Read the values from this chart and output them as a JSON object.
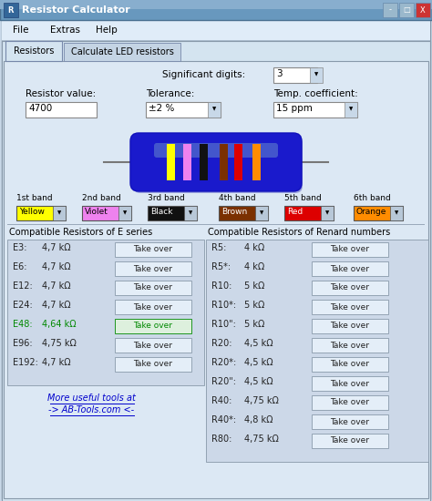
{
  "title": "Resistor Calculator",
  "bg_color": "#c8d8e8",
  "window_bg": "#e8f0f8",
  "title_bar_top": "#7aaac8",
  "title_bar_bot": "#5888a8",
  "menu_items": [
    "File",
    "Extras",
    "Help"
  ],
  "tabs": [
    "Resistors",
    "Calculate LED resistors"
  ],
  "sig_digits_label": "Significant digits:",
  "sig_digits_value": "3",
  "resistor_value_label": "Resistor value:",
  "resistor_value": "4700",
  "tolerance_label": "Tolerance:",
  "tolerance_value": "±2 %",
  "temp_coeff_label": "Temp. coefficient:",
  "temp_coeff_value": "15 ppm",
  "band_labels": [
    "1st band",
    "2nd band",
    "3rd band",
    "4th band",
    "5th band",
    "6th band"
  ],
  "band_names": [
    "Yellow",
    "Violet",
    "Black",
    "Brown",
    "Red",
    "Orange"
  ],
  "band_colors": [
    "#FFFF00",
    "#EE82EE",
    "#111111",
    "#7B3000",
    "#DD0000",
    "#FF8C00"
  ],
  "band_text_colors": [
    "#000000",
    "#000000",
    "#FFFFFF",
    "#FFFFFF",
    "#FFFFFF",
    "#000000"
  ],
  "e_series_title": "Compatible Resistors of E series",
  "r_series_title": "Compatible Resistors of Renard numbers",
  "e_series": [
    {
      "label": "E3:",
      "value": "4,7 kΩ",
      "highlight": false
    },
    {
      "label": "E6:",
      "value": "4,7 kΩ",
      "highlight": false
    },
    {
      "label": "E12:",
      "value": "4,7 kΩ",
      "highlight": false
    },
    {
      "label": "E24:",
      "value": "4,7 kΩ",
      "highlight": false
    },
    {
      "label": "E48:",
      "value": "4,64 kΩ",
      "highlight": true
    },
    {
      "label": "E96:",
      "value": "4,75 kΩ",
      "highlight": false
    },
    {
      "label": "E192:",
      "value": "4,7 kΩ",
      "highlight": false
    }
  ],
  "r_series": [
    {
      "label": "R5:",
      "value": "4 kΩ"
    },
    {
      "label": "R5*:",
      "value": "4 kΩ"
    },
    {
      "label": "R10:",
      "value": "5 kΩ"
    },
    {
      "label": "R10*:",
      "value": "5 kΩ"
    },
    {
      "label": "R10\":",
      "value": "5 kΩ"
    },
    {
      "label": "R20:",
      "value": "4,5 kΩ"
    },
    {
      "label": "R20*:",
      "value": "4,5 kΩ"
    },
    {
      "label": "R20\":",
      "value": "4,5 kΩ"
    },
    {
      "label": "R40:",
      "value": "4,75 kΩ"
    },
    {
      "label": "R40*:",
      "value": "4,8 kΩ"
    },
    {
      "label": "R80:",
      "value": "4,75 kΩ"
    }
  ],
  "link_line1": "More useful tools at",
  "link_line2": "-> AB-Tools.com <-",
  "resistor_body_color": "#1a1acc",
  "resistor_band_colors": [
    "#FFFF00",
    "#EE82EE",
    "#111111",
    "#7B3000",
    "#DD0000",
    "#FF8C00"
  ]
}
